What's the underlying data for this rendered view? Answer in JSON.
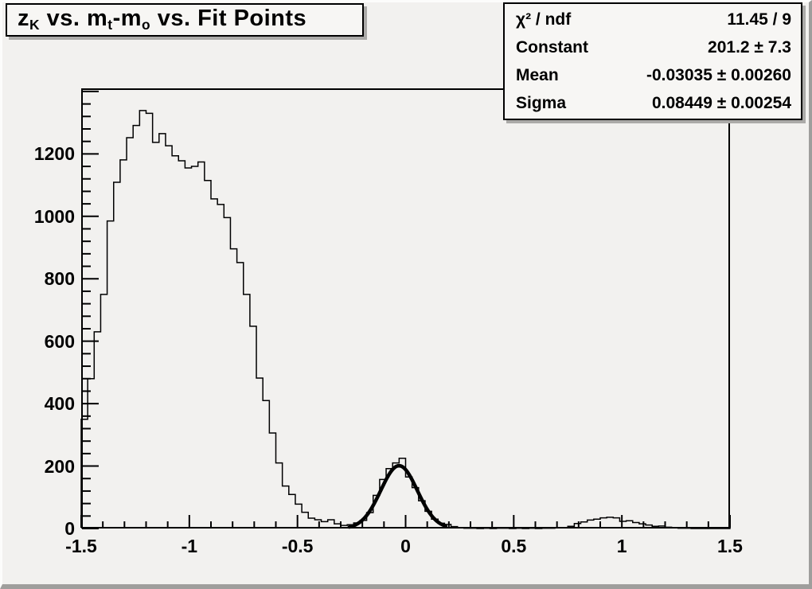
{
  "canvas": {
    "bg_color": "#f2f1ef",
    "bevel_light_color": "#fcfcfb",
    "bevel_dark_color": "#9f9e9c",
    "line_color": "#000000",
    "pave_bg_color": "#f7f6f4"
  },
  "title": {
    "parts": [
      {
        "text": "z"
      },
      {
        "text": "K",
        "sub": true
      },
      {
        "text": " vs. m"
      },
      {
        "text": "t",
        "sub": true
      },
      {
        "text": "-m"
      },
      {
        "text": "o",
        "sub": true
      },
      {
        "text": " vs. Fit Points"
      }
    ]
  },
  "stats_box": {
    "rows": [
      {
        "label": "χ² / ndf",
        "value": "11.45 / 9"
      },
      {
        "label": "Constant",
        "value": "201.2 ± 7.3"
      },
      {
        "label": "Mean",
        "value": "-0.03035 ± 0.00260"
      },
      {
        "label": "Sigma",
        "value": "0.08449 ± 0.00254"
      }
    ]
  },
  "chart_data": {
    "type": "bar",
    "subtype": "step-histogram",
    "title": "z_K vs. m_t-m_o vs. Fit Points",
    "xlabel": "",
    "ylabel": "",
    "xlim": [
      -1.5,
      1.5
    ],
    "ylim": [
      0,
      1410
    ],
    "grid": false,
    "legend": "none",
    "x_start": -1.5,
    "bin_width": 0.03,
    "values": [
      350,
      480,
      630,
      750,
      985,
      1109,
      1181,
      1252,
      1291,
      1339,
      1330,
      1237,
      1265,
      1226,
      1194,
      1178,
      1155,
      1160,
      1174,
      1115,
      1056,
      1038,
      996,
      896,
      852,
      750,
      648,
      482,
      410,
      306,
      210,
      136,
      109,
      78,
      52,
      33,
      28,
      22,
      28,
      15,
      10,
      12,
      18,
      26,
      51,
      106,
      157,
      192,
      210,
      225,
      165,
      131,
      89,
      55,
      30,
      17,
      13,
      6,
      3,
      1,
      1,
      0,
      1,
      0,
      1,
      1,
      0,
      1,
      0,
      1,
      0,
      1,
      1,
      2,
      3,
      7,
      16,
      21,
      27,
      30,
      34,
      36,
      34,
      23,
      25,
      19,
      15,
      11,
      7,
      8,
      4,
      2,
      1,
      1,
      0,
      0,
      0,
      0,
      0,
      0
    ],
    "x_major_ticks": [
      -1.5,
      -1,
      -0.5,
      0,
      0.5,
      1,
      1.5
    ],
    "x_tick_labels": [
      "-1.5",
      "-1",
      "-0.5",
      "0",
      "0.5",
      "1",
      "1.5"
    ],
    "x_minor_step": 0.1,
    "y_major_ticks": [
      0,
      200,
      400,
      600,
      800,
      1000,
      1200
    ],
    "y_tick_labels": [
      "0",
      "200",
      "400",
      "600",
      "800",
      "1000",
      "1200"
    ],
    "y_minor_step": 40,
    "fit": {
      "type": "gaussian",
      "constant": 201.2,
      "mean": -0.03035,
      "sigma": 0.08449,
      "chi2": 11.45,
      "ndf": 9,
      "draw_range": [
        -0.26,
        0.185
      ]
    }
  }
}
